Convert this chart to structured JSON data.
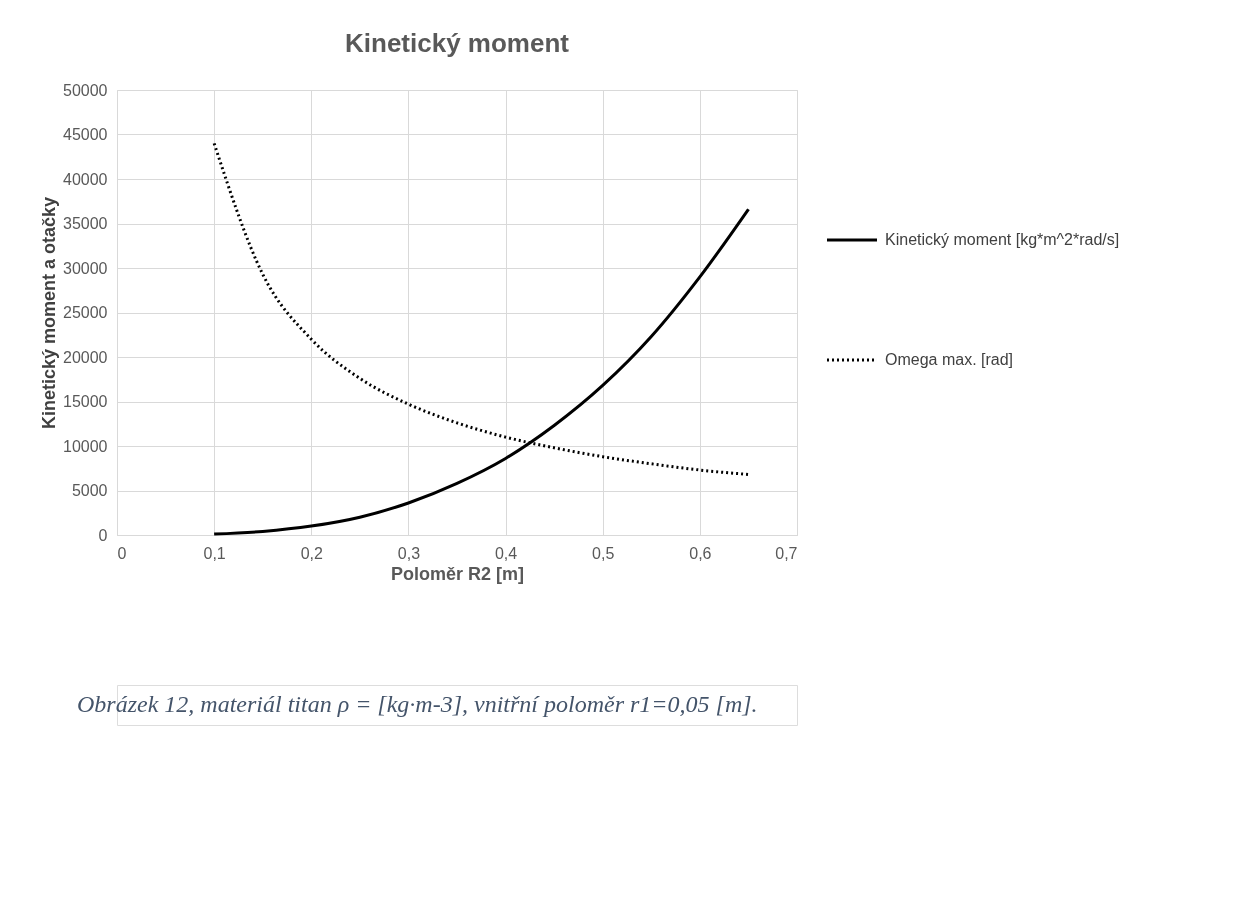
{
  "chart_data": {
    "type": "line",
    "title": "Kinetický moment",
    "xlabel": "Poloměr R2 [m]",
    "ylabel": "Kinetický moment a otačky",
    "x": [
      0.1,
      0.15,
      0.2,
      0.25,
      0.3,
      0.35,
      0.4,
      0.45,
      0.5,
      0.55,
      0.6,
      0.65
    ],
    "series": [
      {
        "name": "Kinetický moment [kg*m^2*rad/s]",
        "color": "#000000",
        "line_style": "solid",
        "values": [
          100,
          400,
          1000,
          2000,
          3600,
          5800,
          8600,
          12300,
          16800,
          22300,
          29000,
          36600
        ]
      },
      {
        "name": "Omega max.  [rad]",
        "color": "#000000",
        "line_style": "dotted",
        "values": [
          44000,
          29300,
          22000,
          17600,
          14700,
          12600,
          11000,
          9800,
          8800,
          8000,
          7300,
          6800
        ]
      }
    ],
    "xlim": [
      0,
      0.7
    ],
    "xticks": [
      0,
      {
        "value": 0.1,
        "label": "0,1"
      },
      {
        "value": 0.2,
        "label": "0,2"
      },
      {
        "value": 0.3,
        "label": "0,3"
      },
      {
        "value": 0.4,
        "label": "0,4"
      },
      {
        "value": 0.5,
        "label": "0,5"
      },
      {
        "value": 0.6,
        "label": "0,6"
      },
      {
        "value": 0.7,
        "label": "0,7"
      }
    ],
    "ylim": [
      0,
      50000
    ],
    "yticks": [
      0,
      5000,
      10000,
      15000,
      20000,
      25000,
      30000,
      35000,
      40000,
      45000,
      50000
    ],
    "grid": true,
    "legend": "right",
    "marker": "none",
    "annotations": [
      "Obrázek 12, materiál titan ρ = [kg·m-3], vnitřní poloměr r1=0,05 [m]."
    ]
  }
}
